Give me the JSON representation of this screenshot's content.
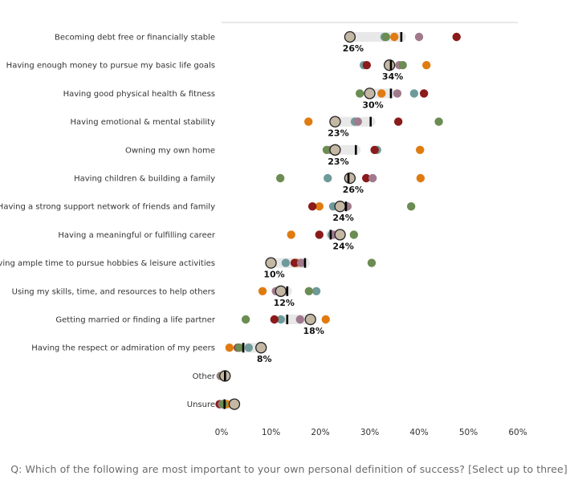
{
  "chart_data": {
    "type": "scatter",
    "subtype": "dot-plot",
    "title": "",
    "xlabel": "",
    "ylabel": "",
    "xlim": [
      0,
      60
    ],
    "x_ticks": [
      "0%",
      "10%",
      "20%",
      "30%",
      "40%",
      "50%",
      "60%"
    ],
    "grid": false,
    "legend": "none",
    "categories": [
      "Becoming debt free or financially stable",
      "Having enough money to pursue my basic life goals",
      "Having good physical health & fitness",
      "Having emotional & mental stability",
      "Owning my own home",
      "Having children & building a family",
      "Having a strong support network of friends and family",
      "Having a meaningful or fulfilling career",
      "Having ample time to pursue hobbies & leisure activities",
      "Using my skills, time, and resources to help others",
      "Getting married or finding a life partner",
      "Having the respect or admiration of my peers",
      "Other",
      "Unsure"
    ],
    "series": [
      {
        "color": "#6f9a9a",
        "values": [
          33,
          28.8,
          39,
          27,
          31.5,
          21.5,
          22.6,
          22.3,
          13,
          19.2,
          12,
          5.5,
          0.3,
          0.2
        ]
      },
      {
        "color": "#e07b10",
        "values": [
          35,
          41.5,
          32.4,
          17.6,
          40.2,
          40.3,
          19.8,
          14.1,
          15.2,
          8.3,
          21.1,
          1.6,
          0.3,
          1.0
        ]
      },
      {
        "color": "#8b1a1a",
        "values": [
          47.6,
          29.4,
          41,
          35.8,
          31,
          29.3,
          18.4,
          19.8,
          14.8,
          11.3,
          10.7,
          3.3,
          0.2,
          -0.4
        ]
      },
      {
        "color": "#a07a8c",
        "values": [
          40,
          36,
          35.6,
          27.6,
          22,
          30.6,
          25.5,
          22.6,
          16.1,
          11,
          15.9,
          3.6,
          -0.2,
          0.1
        ]
      },
      {
        "color": "#6b8c52",
        "values": [
          33.3,
          36.7,
          28,
          44,
          21.3,
          11.9,
          38.4,
          26.8,
          30.4,
          17.7,
          4.9,
          3.5,
          0.2,
          0.3
        ]
      }
    ],
    "marker_values": [
      36.4,
      34.3,
      34.3,
      30.2,
      27.2,
      25.7,
      25.2,
      22.1,
      16.9,
      13.3,
      13.3,
      4.4,
      0.7,
      0.6
    ],
    "total": {
      "color": "#c4b8a4",
      "values": [
        26,
        34,
        30,
        23,
        23,
        26,
        24,
        24,
        10,
        12,
        18,
        8,
        0.7,
        2.6
      ],
      "labels": [
        "26%",
        "34%",
        "30%",
        "23%",
        "23%",
        "26%",
        "24%",
        "24%",
        "10%",
        "12%",
        "18%",
        "8%",
        "",
        ""
      ]
    }
  },
  "footnote": "Q: Which of the following are most important to your own personal definition of success? [Select up to three]"
}
